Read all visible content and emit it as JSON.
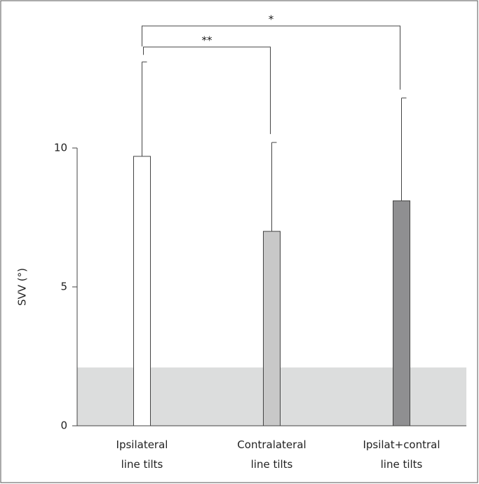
{
  "chart_data": {
    "type": "bar",
    "y_label": "SVV (°)",
    "categories": [
      [
        "Ipsilateral",
        "line tilts"
      ],
      [
        "Contralateral",
        "line tilts"
      ],
      [
        "Ipsilat+contral",
        "line tilts"
      ]
    ],
    "values": [
      9.7,
      7.0,
      8.1
    ],
    "errors": [
      3.4,
      3.2,
      3.7
    ],
    "colors": [
      "#ffffff",
      "#c8c8c8",
      "#8f8f91"
    ],
    "normal_range": [
      0,
      2.1
    ],
    "normal_range_color": "#dcdddd",
    "ylim": [
      0,
      10
    ],
    "yticks": [
      0,
      5,
      10
    ],
    "annotations": [
      {
        "text": "**",
        "from": 0,
        "to": 1
      },
      {
        "text": "*",
        "from": 0,
        "to": 2
      }
    ]
  }
}
